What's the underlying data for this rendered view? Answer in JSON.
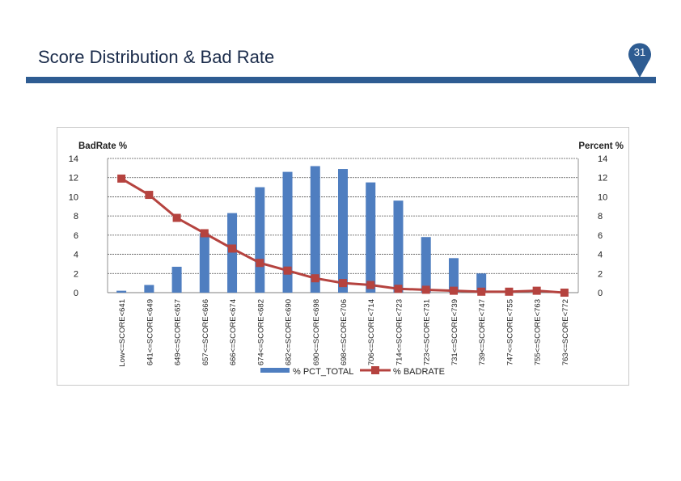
{
  "slide": {
    "title": "Score Distribution & Bad Rate",
    "page_number": "31",
    "colors": {
      "title_bar": "#2e5c92",
      "badge": "#2e5c92"
    }
  },
  "chart_data": {
    "type": "bar",
    "title": "",
    "categories": [
      "Low<=SCORE<641",
      "641<=SCORE<649",
      "649<=SCORE<657",
      "657<=SCORE<666",
      "666<=SCORE<674",
      "674<=SCORE<682",
      "682<=SCORE<690",
      "690<=SCORE<698",
      "698<=SCORE<706",
      "706<=SCORE<714",
      "714<=SCORE<723",
      "723<=SCORE<731",
      "731<=SCORE<739",
      "739<=SCORE<747",
      "747<=SCORE<755",
      "755<=SCORE<763",
      "763<=SCORE<772"
    ],
    "series": [
      {
        "name": "% PCT_TOTAL",
        "type": "bar",
        "axis": "right",
        "color": "#4f7ec0",
        "values": [
          0.2,
          0.8,
          2.7,
          6.2,
          8.3,
          11.0,
          12.6,
          13.2,
          12.9,
          11.5,
          9.6,
          5.8,
          3.6,
          2.0,
          0.2,
          0.0,
          0.0
        ]
      },
      {
        "name": "% BADRATE",
        "type": "line",
        "axis": "left",
        "color": "#b5433f",
        "values": [
          11.9,
          10.2,
          7.8,
          6.2,
          4.6,
          3.1,
          2.3,
          1.5,
          1.0,
          0.8,
          0.4,
          0.3,
          0.2,
          0.1,
          0.1,
          0.2,
          0.0
        ]
      }
    ],
    "ylabel_left": "BadRate %",
    "ylabel_right": "Percent %",
    "ylim_left": [
      0,
      14
    ],
    "ylim_right": [
      0,
      14
    ],
    "yticks": [
      0,
      2,
      4,
      6,
      8,
      10,
      12,
      14
    ],
    "grid": true,
    "legend": "bottom"
  }
}
